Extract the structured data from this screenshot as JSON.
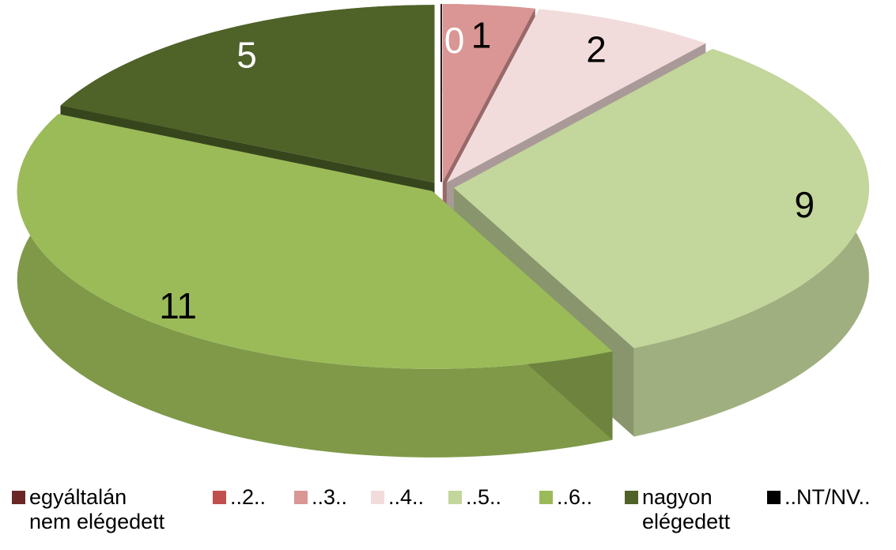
{
  "chart_data": {
    "type": "pie",
    "variant": "3d-exploded",
    "title": "",
    "categories": [
      "egyáltalán\nnem elégedett",
      "..2..",
      "..3..",
      "..4..",
      "..5..",
      "..6..",
      "nagyon\nelégedett",
      "..NT/NV.."
    ],
    "values": [
      0,
      0,
      1,
      2,
      9,
      11,
      5,
      0
    ],
    "colors": [
      "#6B2626",
      "#C0504D",
      "#D99694",
      "#F2DCDB",
      "#C3D69B",
      "#9BBB59",
      "#4F6228",
      "#000000"
    ],
    "data_labels": [
      "",
      "0",
      "1",
      "2",
      "9",
      "11",
      "5",
      ""
    ],
    "legend_position": "bottom"
  }
}
